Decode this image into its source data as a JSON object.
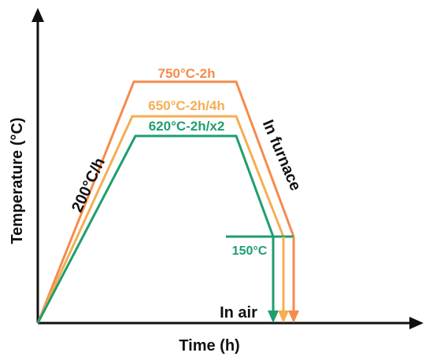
{
  "chart_data": {
    "type": "line",
    "xlabel": "Time (h)",
    "ylabel": "Temperature (°C)",
    "ramp_label": "200°C/h",
    "cooling_label_furnace": "In furnace",
    "cooling_label_air": "In air",
    "quench_temperature_label": "150°C",
    "series": [
      {
        "name": "750°C-2h",
        "peak_temperature": 750,
        "color": "#F58B4C"
      },
      {
        "name": "650°C-2h/4h",
        "peak_temperature": 650,
        "color": "#F5AE52"
      },
      {
        "name": "620°C-2h/x2",
        "peak_temperature": 620,
        "color": "#1E9E6E"
      }
    ],
    "axis_color": "#111111"
  }
}
